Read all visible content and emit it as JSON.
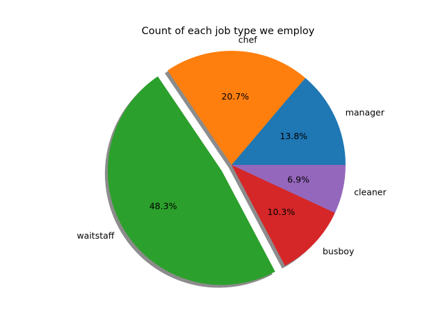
{
  "chart_data": {
    "type": "pie",
    "title": "Count of each job type we employ",
    "labels": [
      "manager",
      "chef",
      "waitstaff",
      "busboy",
      "cleaner"
    ],
    "values": [
      4,
      6,
      14,
      3,
      2
    ],
    "percent_labels": [
      "13.8%",
      "20.7%",
      "48.3%",
      "10.3%",
      "6.9%"
    ],
    "colors": [
      "#1f77b4",
      "#ff7f0e",
      "#2ca02c",
      "#d62728",
      "#9467bd"
    ],
    "start_angle": 0,
    "direction": "counterclockwise",
    "explode": [
      0,
      0,
      0.1,
      0,
      0
    ],
    "shadow": true,
    "legend": "none",
    "grid": false
  }
}
